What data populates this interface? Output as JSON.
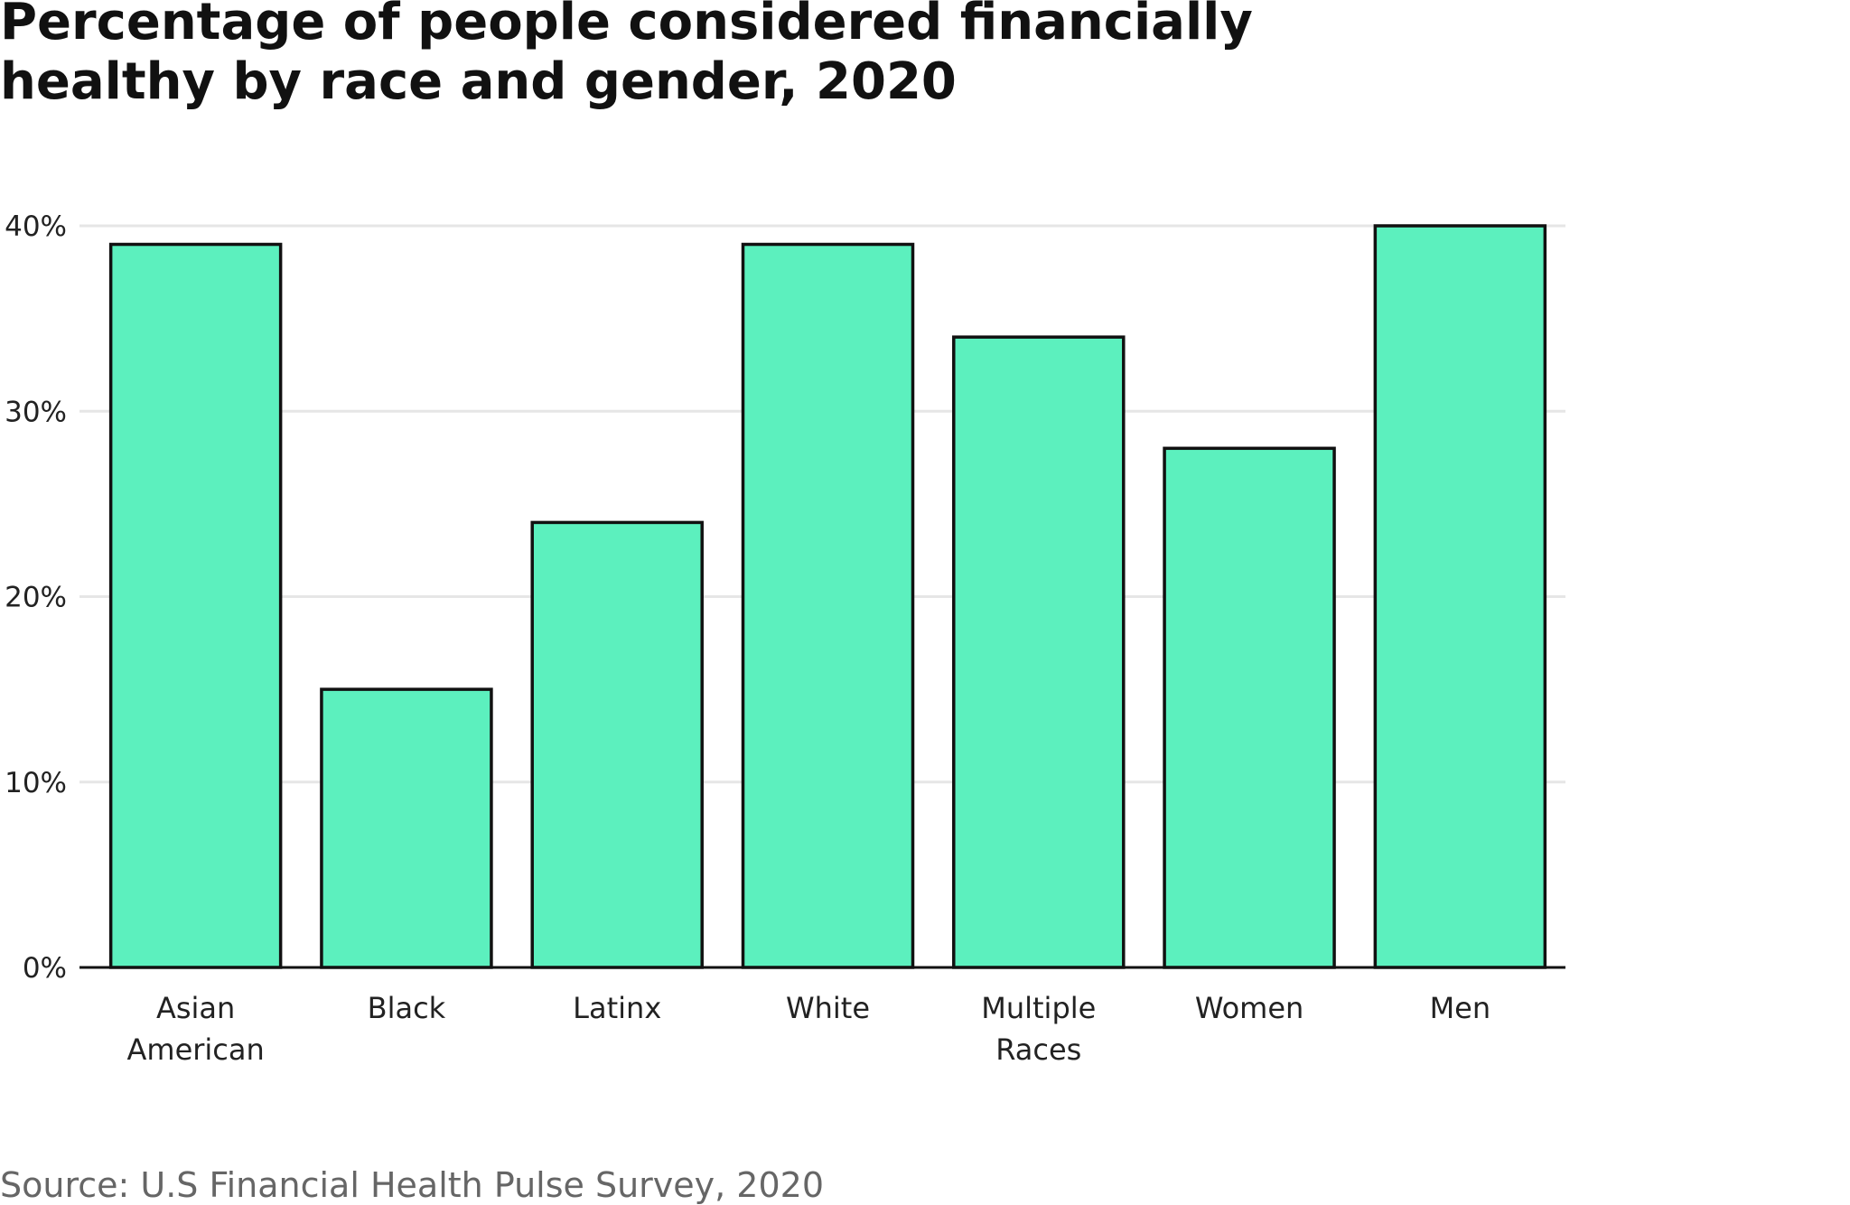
{
  "chart_data": {
    "type": "bar",
    "title_lines": [
      "Percentage of people considered financially",
      "healthy by race and gender, 2020"
    ],
    "categories": [
      [
        "Asian",
        "American"
      ],
      [
        "Black"
      ],
      [
        "Latinx"
      ],
      [
        "White"
      ],
      [
        "Multiple",
        "Races"
      ],
      [
        "Women"
      ],
      [
        "Men"
      ]
    ],
    "values": [
      39,
      15,
      24,
      39,
      34,
      28,
      40
    ],
    "xlabel": "",
    "ylabel": "",
    "ylim": [
      0,
      40
    ],
    "yticks": [
      0,
      10,
      20,
      30,
      40
    ],
    "ytick_labels": [
      "0%",
      "10%",
      "20%",
      "30%",
      "40%"
    ],
    "grid": true,
    "bar_color": "#5CF0BE",
    "bar_outline_color": "#111111",
    "grid_color": "#E6E6E6"
  },
  "source": "Source: U.S Financial Health Pulse Survey, 2020"
}
